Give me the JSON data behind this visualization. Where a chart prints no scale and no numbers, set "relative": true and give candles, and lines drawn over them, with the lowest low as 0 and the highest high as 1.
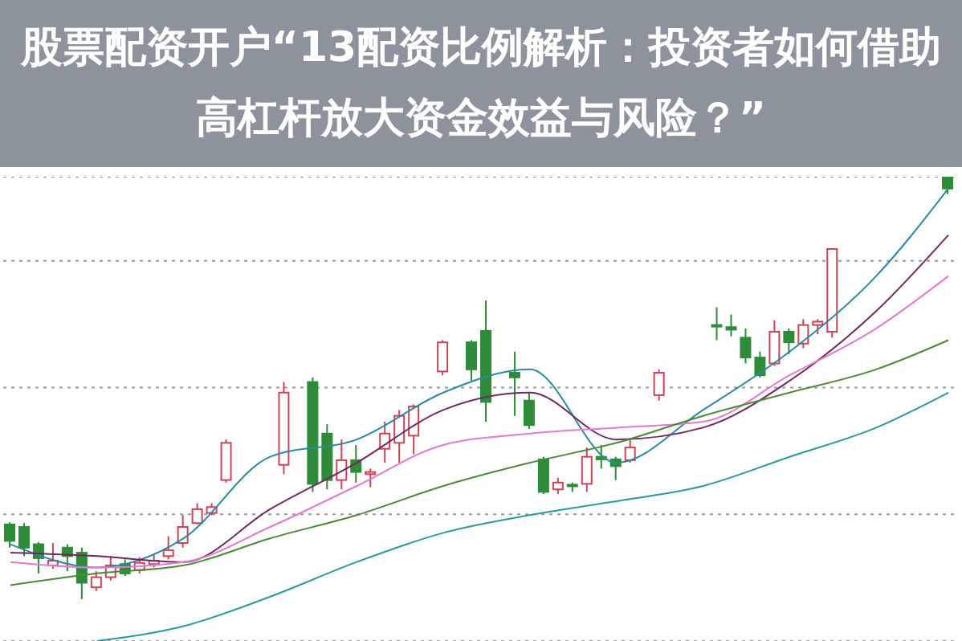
{
  "chart_data": {
    "type": "candlestick",
    "title": "股票配资开户“13配资比例解析：投资者如何借助高杠杆放大资金效益与风险？”",
    "relative": true,
    "grid": true,
    "colors": [
      "#2e8b3a",
      "#2e8b3a",
      "#2e8b3a",
      "#cc4455",
      "#2e8b3a",
      "#2e8b3a",
      "#cc4455",
      "#cc4455",
      "#2e8b3a",
      "#cc4455",
      "#cc4455",
      "#cc4455",
      "#cc4455",
      "#cc4455",
      "#cc4455",
      "#cc4455",
      null,
      null,
      null,
      "#cc4455",
      null,
      "#2e8b3a",
      "#2e8b3a",
      "#cc4455",
      "#2e8b3a",
      "#cc4455",
      "#cc4455",
      "#cc4455",
      "#cc4455",
      null,
      "#cc4455",
      null,
      "#2e8b3a",
      "#2e8b3a",
      null,
      "#2e8b3a",
      "#2e8b3a",
      "#2e8b3a",
      "#cc4455",
      "#2e8b3a",
      "#cc4455",
      "#2e8b3a",
      "#2e8b3a",
      "#cc4455",
      null,
      "#cc4455",
      null,
      null,
      null,
      "#2e8b3a",
      "#2e8b3a",
      "#2e8b3a",
      "#2e8b3a",
      "#cc4455",
      "#2e8b3a",
      "#cc4455",
      "#cc4455",
      "#cc4455",
      null,
      null,
      null,
      null,
      null,
      null,
      null,
      "#2e8b3a"
    ],
    "categories": [
      null,
      null,
      null,
      null,
      null,
      null,
      null,
      null,
      null,
      null,
      null,
      null,
      null,
      null,
      null,
      null,
      null,
      null,
      null,
      null,
      null,
      null,
      null,
      null,
      null,
      null,
      null,
      null,
      null,
      null,
      null,
      null,
      null,
      null,
      null,
      null,
      null,
      null,
      null,
      null,
      null,
      null,
      null,
      null,
      null,
      null,
      null,
      null,
      null,
      null,
      null,
      null,
      null,
      null,
      null,
      null,
      null,
      null,
      null,
      null,
      null,
      null,
      null,
      null,
      null,
      null
    ],
    "ohlc": [
      [
        0.177,
        0.182,
        0.122,
        0.138
      ],
      [
        0.171,
        0.18,
        0.102,
        0.122
      ],
      [
        0.13,
        0.135,
        0.061,
        0.097
      ],
      [
        0.08,
        0.133,
        0.072,
        0.091
      ],
      [
        0.122,
        0.13,
        0.066,
        0.102
      ],
      [
        0.11,
        0.122,
        0,
        0.039
      ],
      [
        0.028,
        0.066,
        0.019,
        0.052
      ],
      [
        0.052,
        0.102,
        0.044,
        0.08
      ],
      [
        0.083,
        0.094,
        0.055,
        0.061
      ],
      [
        0.069,
        0.099,
        0.061,
        0.086
      ],
      [
        0.083,
        0.105,
        0.075,
        0.091
      ],
      [
        0.102,
        0.149,
        0.094,
        0.116
      ],
      [
        0.133,
        0.199,
        0.122,
        0.171
      ],
      [
        0.18,
        0.227,
        0.177,
        0.213
      ],
      [
        0.204,
        0.227,
        0.199,
        0.218
      ],
      [
        0.282,
        0.378,
        0.276,
        0.37
      ],
      null,
      null,
      null,
      [
        0.318,
        0.514,
        0.296,
        0.489
      ],
      null,
      [
        0.514,
        0.525,
        0.254,
        0.273
      ],
      [
        0.392,
        0.414,
        0.26,
        0.282
      ],
      [
        0.282,
        0.378,
        0.26,
        0.329
      ],
      [
        0.329,
        0.365,
        0.276,
        0.301
      ],
      [
        0.296,
        0.309,
        0.265,
        0.301
      ],
      [
        0.356,
        0.42,
        0.323,
        0.392
      ],
      [
        0.37,
        0.448,
        0.323,
        0.434
      ],
      [
        0.387,
        0.461,
        0.343,
        0.456
      ],
      null,
      [
        0.539,
        0.613,
        0.53,
        0.608
      ],
      null,
      [
        0.608,
        0.613,
        0.517,
        0.544
      ],
      [
        0.635,
        0.707,
        0.42,
        0.467
      ],
      null,
      [
        0.536,
        0.586,
        0.434,
        0.525
      ],
      [
        0.47,
        0.489,
        0.403,
        0.412
      ],
      [
        0.331,
        0.337,
        0.249,
        0.254
      ],
      [
        0.26,
        0.287,
        0.249,
        0.276
      ],
      [
        0.271,
        0.276,
        0.254,
        0.268
      ],
      [
        0.273,
        0.359,
        0.254,
        0.337
      ],
      [
        0.337,
        0.365,
        0.309,
        0.331
      ],
      [
        0.331,
        0.337,
        0.282,
        0.315
      ],
      [
        0.329,
        0.378,
        0.323,
        0.359
      ],
      null,
      [
        0.483,
        0.544,
        0.47,
        0.536
      ],
      null,
      null,
      null,
      [
        0.649,
        0.691,
        0.613,
        0.646
      ],
      [
        0.644,
        0.674,
        0.622,
        0.638
      ],
      [
        0.619,
        0.641,
        0.558,
        0.572
      ],
      [
        0.572,
        0.586,
        0.525,
        0.53
      ],
      [
        0.558,
        0.66,
        0.552,
        0.633
      ],
      [
        0.633,
        0.641,
        0.58,
        0.608
      ],
      [
        0.605,
        0.663,
        0.594,
        0.649
      ],
      [
        0.649,
        0.663,
        0.627,
        0.657
      ],
      [
        0.633,
        0.829,
        0.619,
        0.829
      ],
      null,
      null,
      null,
      null,
      null,
      null,
      null,
      [
        1,
        1,
        0.959,
        0.972
      ]
    ],
    "series": [
      {
        "type": "line",
        "color": "#2b8a9c",
        "values": [
          0.13,
          null,
          null,
          null,
          null,
          null,
          0.075,
          null,
          null,
          null,
          null,
          null,
          0.144,
          null,
          null,
          null,
          null,
          null,
          0.337,
          null,
          null,
          null,
          null,
          null,
          0.378,
          null,
          null,
          null,
          null,
          null,
          0.489,
          null,
          null,
          null,
          null,
          null,
          0.544,
          null,
          null,
          null,
          null,
          null,
          0.323,
          null,
          null,
          null,
          null,
          null,
          0.448,
          null,
          null,
          null,
          null,
          null,
          0.586,
          null,
          null,
          null,
          null,
          null,
          0.765,
          null,
          null,
          null,
          null,
          0.972
        ]
      },
      {
        "type": "line",
        "color": "#6e2a5e",
        "values": [
          0.11,
          null,
          null,
          null,
          null,
          null,
          0.102,
          null,
          null,
          null,
          null,
          null,
          0.088,
          null,
          null,
          null,
          null,
          null,
          0.213,
          null,
          null,
          null,
          null,
          null,
          0.323,
          null,
          null,
          null,
          null,
          null,
          0.448,
          null,
          null,
          null,
          null,
          null,
          0.489,
          null,
          null,
          null,
          null,
          null,
          0.378,
          null,
          null,
          null,
          null,
          null,
          0.406,
          null,
          null,
          null,
          null,
          null,
          0.517,
          null,
          null,
          null,
          null,
          null,
          0.682,
          null,
          null,
          null,
          null,
          0.862
        ]
      },
      {
        "type": "line",
        "color": "#e27ad0",
        "values": [
          0.088,
          null,
          null,
          null,
          null,
          null,
          0.075,
          null,
          null,
          null,
          null,
          null,
          0.088,
          null,
          null,
          null,
          null,
          null,
          0.171,
          null,
          null,
          null,
          null,
          null,
          0.268,
          null,
          null,
          null,
          null,
          null,
          0.365,
          null,
          null,
          null,
          null,
          null,
          0.392,
          null,
          null,
          null,
          null,
          null,
          0.406,
          null,
          null,
          null,
          null,
          null,
          0.42,
          null,
          null,
          null,
          null,
          null,
          0.53,
          null,
          null,
          null,
          null,
          null,
          0.641,
          null,
          null,
          null,
          null,
          0.765
        ]
      },
      {
        "type": "line",
        "color": "#4a8a3a",
        "values": [
          0.033,
          null,
          null,
          null,
          null,
          null,
          0.061,
          null,
          null,
          null,
          null,
          null,
          0.08,
          null,
          null,
          null,
          null,
          null,
          0.144,
          null,
          null,
          null,
          null,
          null,
          0.199,
          null,
          null,
          null,
          null,
          null,
          0.268,
          null,
          null,
          null,
          null,
          null,
          0.323,
          null,
          null,
          null,
          null,
          null,
          0.37,
          null,
          null,
          null,
          null,
          null,
          0.434,
          null,
          null,
          null,
          null,
          null,
          0.489,
          null,
          null,
          null,
          null,
          null,
          0.544,
          null,
          null,
          null,
          null,
          0.613
        ]
      },
      {
        "type": "line",
        "color": "#2a9a9a",
        "values": [
          null,
          null,
          null,
          null,
          null,
          null,
          -0.099,
          null,
          null,
          null,
          null,
          null,
          -0.064,
          null,
          null,
          null,
          null,
          null,
          0.006,
          null,
          null,
          null,
          null,
          null,
          0.088,
          null,
          null,
          null,
          null,
          null,
          0.157,
          null,
          null,
          null,
          null,
          null,
          0.199,
          null,
          null,
          null,
          null,
          null,
          0.232,
          null,
          null,
          null,
          null,
          null,
          0.268,
          null,
          null,
          null,
          null,
          null,
          0.337,
          null,
          null,
          null,
          null,
          null,
          0.406,
          null,
          null,
          null,
          null,
          0.489
        ]
      }
    ]
  }
}
